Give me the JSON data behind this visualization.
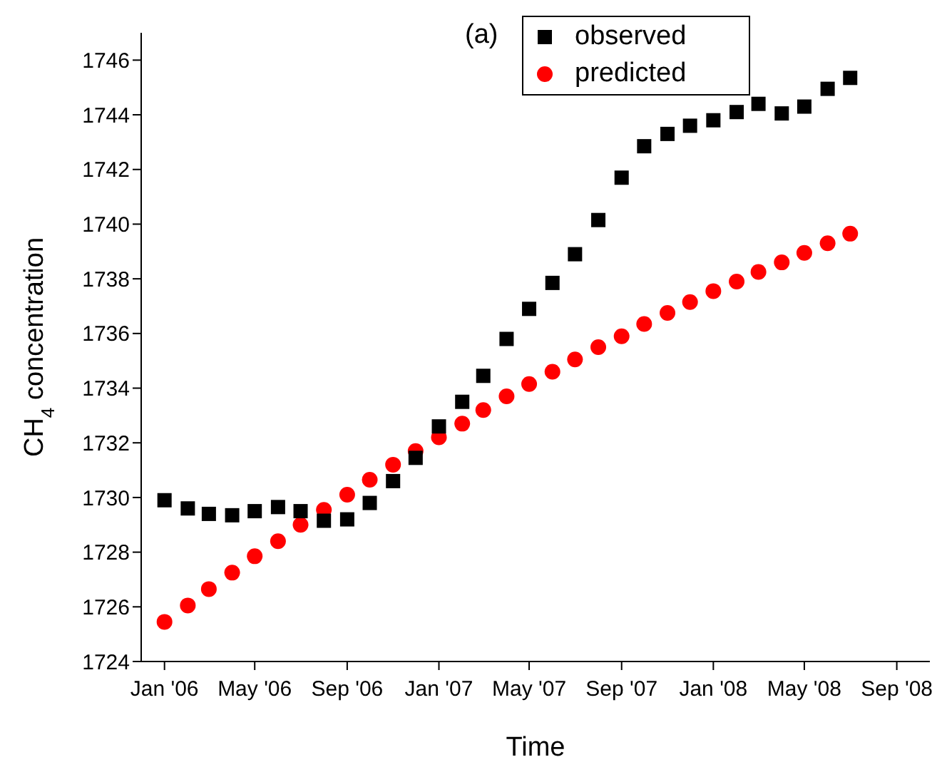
{
  "chart_data": {
    "type": "scatter",
    "xlabel": "Time",
    "ylabel": "CH$_{4}$ concentration",
    "annotations": [
      "(a)"
    ],
    "x": [
      "2006-01",
      "2006-02",
      "2006-03",
      "2006-04",
      "2006-05",
      "2006-06",
      "2006-07",
      "2006-08",
      "2006-09",
      "2006-10",
      "2006-11",
      "2006-12",
      "2007-01",
      "2007-02",
      "2007-03",
      "2007-04",
      "2007-05",
      "2007-06",
      "2007-07",
      "2007-08",
      "2007-09",
      "2007-10",
      "2007-11",
      "2007-12",
      "2008-01",
      "2008-02",
      "2008-03",
      "2008-04",
      "2008-05",
      "2008-06",
      "2008-07"
    ],
    "series": [
      {
        "name": "observed",
        "color": "#000000",
        "marker": "square",
        "values": [
          1729.9,
          1729.6,
          1729.4,
          1729.35,
          1729.5,
          1729.65,
          1729.5,
          1729.15,
          1729.2,
          1729.8,
          1730.6,
          1731.45,
          1732.6,
          1733.5,
          1734.45,
          1735.8,
          1736.9,
          1737.85,
          1738.9,
          1740.15,
          1741.7,
          1742.85,
          1743.3,
          1743.6,
          1743.8,
          1744.1,
          1744.4,
          1744.05,
          1744.3,
          1744.95,
          1745.35
        ]
      },
      {
        "name": "predicted",
        "color": "#ff0000",
        "marker": "circle",
        "values": [
          1725.45,
          1726.05,
          1726.65,
          1727.25,
          1727.85,
          1728.4,
          1729.0,
          1729.55,
          1730.1,
          1730.65,
          1731.2,
          1731.7,
          1732.2,
          1732.7,
          1733.2,
          1733.7,
          1734.15,
          1734.6,
          1735.05,
          1735.5,
          1735.9,
          1736.35,
          1736.75,
          1737.15,
          1737.55,
          1737.9,
          1738.25,
          1738.6,
          1738.95,
          1739.3,
          1739.65
        ]
      }
    ],
    "xlim": [
      "2005-12",
      "2008-10-15"
    ],
    "xticks": [
      {
        "value": "2006-01",
        "label": "Jan '06"
      },
      {
        "value": "2006-05",
        "label": "May '06"
      },
      {
        "value": "2006-09",
        "label": "Sep '06"
      },
      {
        "value": "2007-01",
        "label": "Jan '07"
      },
      {
        "value": "2007-05",
        "label": "May '07"
      },
      {
        "value": "2007-09",
        "label": "Sep '07"
      },
      {
        "value": "2008-01",
        "label": "Jan '08"
      },
      {
        "value": "2008-05",
        "label": "May '08"
      },
      {
        "value": "2008-09",
        "label": "Sep '08"
      }
    ],
    "ylim": [
      1724,
      1747
    ],
    "yticks": [
      1724,
      1726,
      1728,
      1730,
      1732,
      1734,
      1736,
      1738,
      1740,
      1742,
      1744,
      1746
    ],
    "legend": "top right"
  }
}
